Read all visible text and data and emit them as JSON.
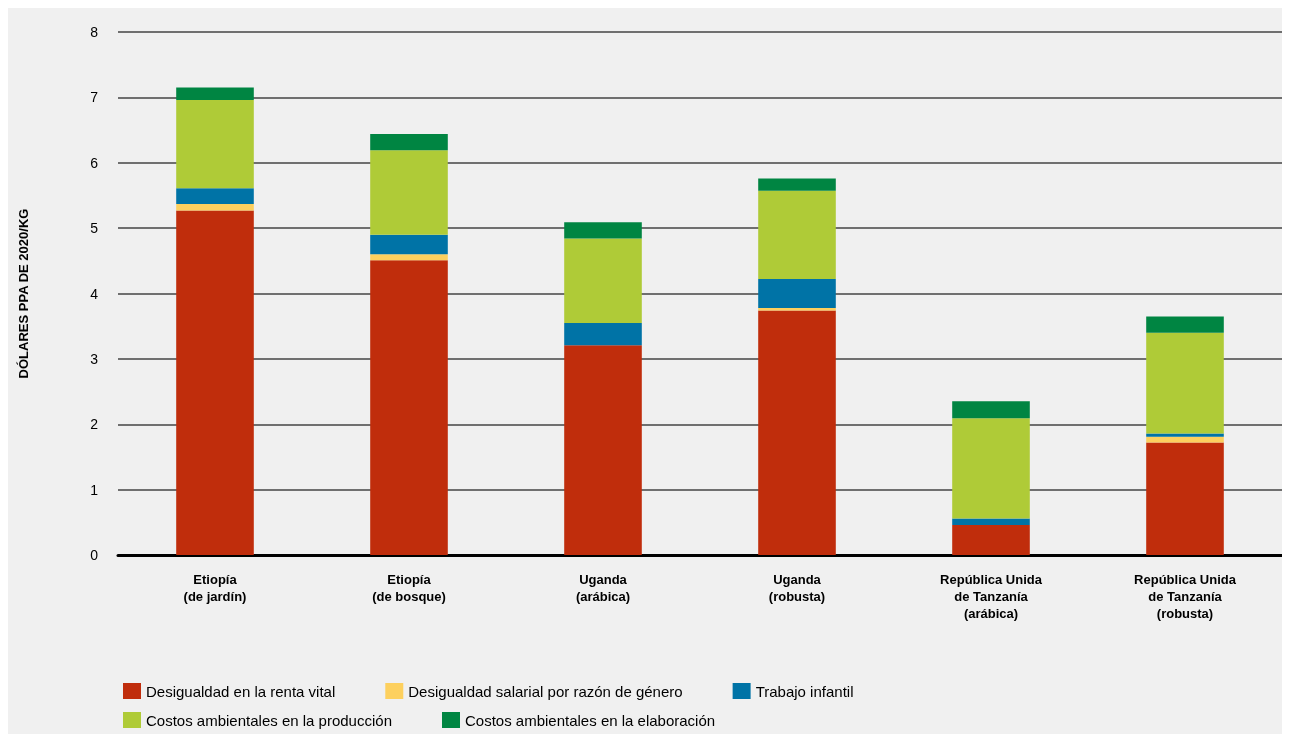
{
  "chart_data": {
    "type": "bar",
    "stacked": true,
    "ylabel": "DÓLARES PPA DE 2020/KG",
    "categories": [
      "Etiopía\n(de jardín)",
      "Etiopía\n(de bosque)",
      "Uganda\n(arábica)",
      "Uganda\n(robusta)",
      "República Unida\nde Tanzanía\n(arábica)",
      "República Unida\nde Tanzanía\n(robusta)"
    ],
    "series": [
      {
        "name": "Desigualdad en la renta vital",
        "color": "#c02d0c",
        "values": [
          5.27,
          4.51,
          3.21,
          3.74,
          0.46,
          1.72
        ]
      },
      {
        "name": "Desigualdad salarial por razón de género",
        "color": "#fdd05e",
        "values": [
          0.1,
          0.09,
          0,
          0.04,
          0,
          0.09
        ]
      },
      {
        "name": "Trabajo infantil",
        "color": "#0073a6",
        "values": [
          0.24,
          0.3,
          0.34,
          0.44,
          0.1,
          0.05
        ]
      },
      {
        "name": "Costos ambientales en la producción",
        "color": "#afcb37",
        "values": [
          1.35,
          1.29,
          1.29,
          1.35,
          1.53,
          1.54
        ]
      },
      {
        "name": "Costos ambientales en la elaboración",
        "color": "#008542",
        "values": [
          0.19,
          0.25,
          0.25,
          0.19,
          0.26,
          0.25
        ]
      }
    ],
    "ylim": [
      0,
      8
    ],
    "yticks": [
      0,
      1,
      2,
      3,
      4,
      5,
      6,
      7,
      8
    ],
    "grid": "y",
    "legend": "bottom"
  }
}
